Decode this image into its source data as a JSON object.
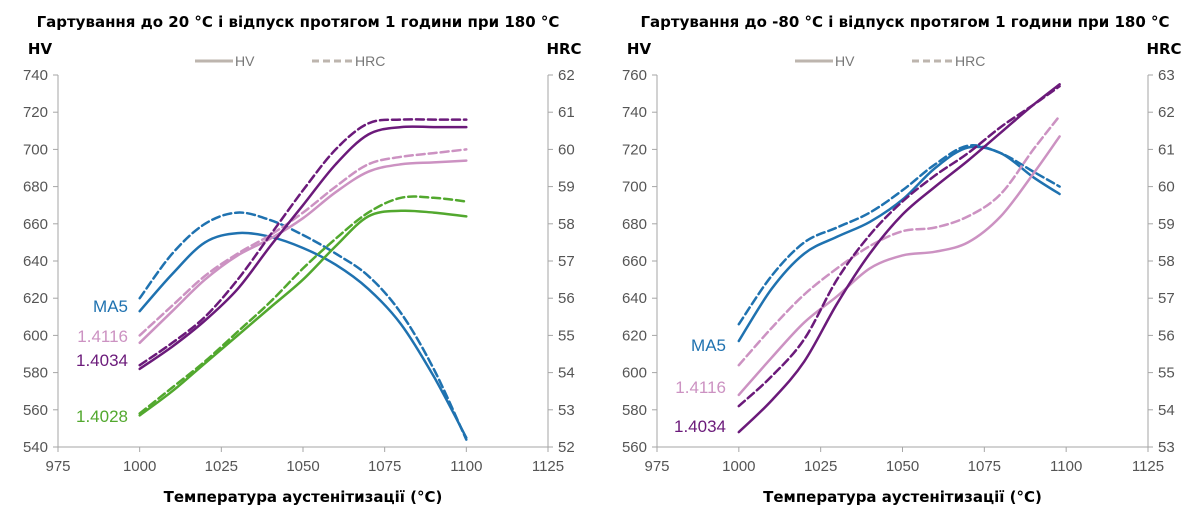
{
  "chart_data": [
    {
      "type": "line",
      "title": "Гартування до 20 °C і відпуск протягом 1 години при 180 °C",
      "xlabel": "Температура аустенітизації (°C)",
      "ylabel": "HV",
      "y2label": "HRC",
      "xlim": [
        975,
        1125
      ],
      "xticks": [
        "975",
        "1000",
        "1025",
        "1050",
        "1075",
        "1100",
        "1125"
      ],
      "ylim": [
        540,
        740
      ],
      "yticks": [
        "540",
        "560",
        "580",
        "600",
        "620",
        "640",
        "660",
        "680",
        "700",
        "720",
        "740"
      ],
      "y2lim": [
        52,
        62
      ],
      "y2ticks": [
        "52",
        "53",
        "54",
        "55",
        "56",
        "57",
        "58",
        "59",
        "60",
        "61",
        "62"
      ],
      "legend": {
        "hv": "HV",
        "hrc": "HRC",
        "placement": "top-center"
      },
      "series": [
        {
          "name": "MA5",
          "color": "#1f72b0",
          "x": [
            1000,
            1010,
            1020,
            1030,
            1040,
            1050,
            1060,
            1070,
            1080,
            1090,
            1100
          ],
          "hv": [
            613,
            633,
            650,
            655,
            653,
            647,
            638,
            625,
            606,
            578,
            545
          ],
          "hrc": [
            56.0,
            57.2,
            58.0,
            58.3,
            58.1,
            57.7,
            57.2,
            56.6,
            55.6,
            54.1,
            52.2
          ]
        },
        {
          "name": "1.4116",
          "color": "#cc92c2",
          "x": [
            1000,
            1010,
            1020,
            1030,
            1040,
            1050,
            1060,
            1070,
            1080,
            1090,
            1100
          ],
          "hv": [
            596,
            613,
            630,
            643,
            652,
            663,
            677,
            688,
            692,
            693,
            694
          ],
          "hrc": [
            55.0,
            55.8,
            56.6,
            57.2,
            57.7,
            58.3,
            59.0,
            59.6,
            59.8,
            59.9,
            60.0
          ]
        },
        {
          "name": "1.4034",
          "color": "#6b1a7a",
          "x": [
            1000,
            1010,
            1020,
            1030,
            1040,
            1050,
            1060,
            1070,
            1080,
            1090,
            1100
          ],
          "hv": [
            582,
            594,
            608,
            625,
            648,
            670,
            692,
            708,
            712,
            712,
            712
          ],
          "hrc": [
            54.2,
            54.8,
            55.5,
            56.5,
            57.7,
            58.9,
            60.0,
            60.7,
            60.8,
            60.8,
            60.8
          ]
        },
        {
          "name": "1.4028",
          "color": "#52a82e",
          "x": [
            1000,
            1010,
            1020,
            1030,
            1040,
            1050,
            1060,
            1070,
            1080,
            1090,
            1100
          ],
          "hv": [
            557,
            570,
            585,
            600,
            615,
            630,
            648,
            664,
            667,
            666,
            664
          ],
          "hrc": [
            52.9,
            53.6,
            54.3,
            55.1,
            55.9,
            56.8,
            57.6,
            58.3,
            58.7,
            58.7,
            58.6
          ]
        }
      ],
      "series_labels": [
        "MA5",
        "1.4116",
        "1.4034",
        "1.4028"
      ]
    },
    {
      "type": "line",
      "title": "Гартування до -80 °C і відпуск протягом 1 години при 180 °C",
      "xlabel": "Температура аустенітизації (°C)",
      "ylabel": "HV",
      "y2label": "HRC",
      "xlim": [
        975,
        1125
      ],
      "xticks": [
        "975",
        "1000",
        "1025",
        "1050",
        "1075",
        "1100",
        "1125"
      ],
      "ylim": [
        560,
        760
      ],
      "yticks": [
        "560",
        "580",
        "600",
        "620",
        "640",
        "660",
        "680",
        "700",
        "720",
        "740",
        "760"
      ],
      "y2lim": [
        53,
        63
      ],
      "y2ticks": [
        "53",
        "54",
        "55",
        "56",
        "57",
        "58",
        "59",
        "60",
        "61",
        "62",
        "63"
      ],
      "legend": {
        "hv": "HV",
        "hrc": "HRC",
        "placement": "top-center"
      },
      "series": [
        {
          "name": "MA5",
          "color": "#1f72b0",
          "x": [
            1000,
            1010,
            1020,
            1030,
            1040,
            1050,
            1060,
            1070,
            1080,
            1090,
            1098
          ],
          "hv": [
            617,
            645,
            664,
            673,
            681,
            693,
            710,
            721,
            718,
            705,
            696
          ],
          "hrc": [
            56.3,
            57.6,
            58.5,
            58.9,
            59.3,
            59.9,
            60.6,
            61.1,
            60.9,
            60.4,
            60.0
          ]
        },
        {
          "name": "1.4116",
          "color": "#cc92c2",
          "x": [
            1000,
            1010,
            1020,
            1030,
            1040,
            1050,
            1060,
            1070,
            1080,
            1090,
            1098
          ],
          "hv": [
            588,
            608,
            627,
            641,
            656,
            663,
            665,
            670,
            684,
            707,
            727
          ],
          "hrc": [
            55.2,
            56.2,
            57.1,
            57.8,
            58.4,
            58.8,
            58.9,
            59.2,
            59.8,
            61.0,
            61.9
          ]
        },
        {
          "name": "1.4034",
          "color": "#6b1a7a",
          "x": [
            1000,
            1010,
            1020,
            1030,
            1040,
            1050,
            1060,
            1070,
            1080,
            1090,
            1098
          ],
          "hv": [
            568,
            585,
            606,
            637,
            664,
            685,
            700,
            714,
            729,
            744,
            755
          ],
          "hrc": [
            54.1,
            54.9,
            55.9,
            57.5,
            58.7,
            59.6,
            60.3,
            60.9,
            61.6,
            62.2,
            62.7
          ]
        }
      ],
      "series_labels": [
        "MA5",
        "1.4116",
        "1.4034"
      ]
    }
  ]
}
